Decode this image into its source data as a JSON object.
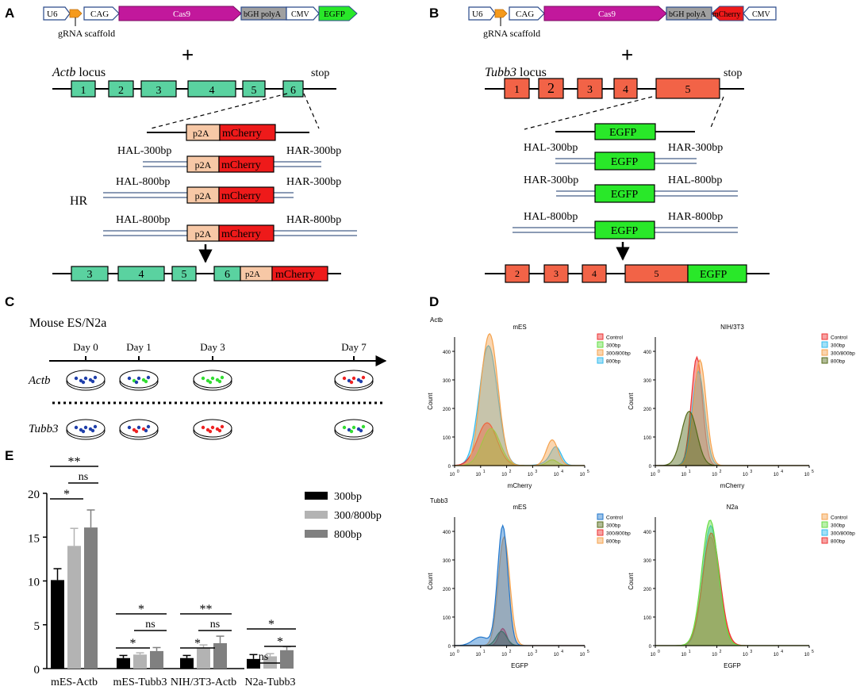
{
  "panels": {
    "A": "A",
    "B": "B",
    "C": "C",
    "D": "D",
    "E": "E"
  },
  "colors": {
    "cas9": "#c2189c",
    "egfp": "#29e829",
    "mcherry": "#ee1a1a",
    "exonA": "#5ad2a0",
    "exonB": "#f26347",
    "p2a": "#f7c8a6",
    "arrow": "#f59a1c",
    "polya": "#a0a0a0",
    "homology": "#8b9bb5"
  },
  "panelA": {
    "plasmid": {
      "u6": "U6",
      "cag": "CAG",
      "cas9": "Cas9",
      "polya": "bGH polyA",
      "cmv": "CMV",
      "egfp": "EGFP",
      "scaffold": "gRNA scaffold"
    },
    "plus": "+",
    "locus_gene": "Actb",
    "locus_word": " locus",
    "stop": "stop",
    "exons": [
      "1",
      "2",
      "3",
      "4",
      "5",
      "6"
    ],
    "donor": {
      "p2a": "p2A",
      "reporter": "mCherry"
    },
    "arms": [
      {
        "left": "HAL-300bp",
        "right": "HAR-300bp"
      },
      {
        "left": "HAL-800bp",
        "right": "HAR-300bp"
      },
      {
        "left": "HAL-800bp",
        "right": "HAR-800bp"
      }
    ],
    "hr": "HR",
    "result_exons": [
      "3",
      "4",
      "5",
      "6"
    ]
  },
  "panelB": {
    "plasmid": {
      "u6": "U6",
      "cag": "CAG",
      "cas9": "Cas9",
      "polya": "bGH polyA",
      "mcherry": "mCherry",
      "cmv": "CMV",
      "scaffold": "gRNA scaffold"
    },
    "plus": "+",
    "locus_gene": "Tubb3",
    "locus_word": " locus",
    "stop": "stop",
    "exons": [
      "1",
      "2",
      "3",
      "4",
      "5"
    ],
    "donor": {
      "reporter": "EGFP"
    },
    "arms": [
      {
        "left": "HAL-300bp",
        "right": "HAR-300bp"
      },
      {
        "left": "HAR-300bp",
        "right": "HAL-800bp"
      },
      {
        "left": "HAL-800bp",
        "right": "HAR-800bp"
      }
    ],
    "result_exons": [
      "2",
      "3",
      "4",
      "5"
    ]
  },
  "panelC": {
    "title": "Mouse ES/N2a",
    "days": [
      "Day 0",
      "Day 1",
      "Day 3",
      "Day 7"
    ],
    "rows": [
      "Actb",
      "Tubb3"
    ]
  },
  "panelD": {
    "row_labels": [
      "Actb",
      "Tubb3"
    ],
    "ylabel": "Count",
    "plots": [
      {
        "title": "mES",
        "xlabel": "mCherry",
        "yticks": [
          "0",
          "100",
          "200",
          "300",
          "400"
        ],
        "legend": [
          {
            "label": "Control",
            "color": "#ee3333"
          },
          {
            "label": "300bp",
            "color": "#66dd44"
          },
          {
            "label": "300/800bp",
            "color": "#f5a24d"
          },
          {
            "label": "800bp",
            "color": "#33bbee"
          }
        ]
      },
      {
        "title": "NIH/3T3",
        "xlabel": "mCherry",
        "yticks": [
          "0",
          "100",
          "200",
          "300",
          "400"
        ],
        "legend": [
          {
            "label": "Control",
            "color": "#ee3333"
          },
          {
            "label": "300bp",
            "color": "#33bbee"
          },
          {
            "label": "300/800bp",
            "color": "#f5a24d"
          },
          {
            "label": "800bp",
            "color": "#556b1a"
          }
        ]
      },
      {
        "title": "mES",
        "xlabel": "EGFP",
        "yticks": [
          "0",
          "100",
          "200",
          "300",
          "400"
        ],
        "legend": [
          {
            "label": "Control",
            "color": "#2277cc"
          },
          {
            "label": "300bp",
            "color": "#556b1a"
          },
          {
            "label": "300/800bp",
            "color": "#ee3333"
          },
          {
            "label": "800bp",
            "color": "#f5a24d"
          }
        ]
      },
      {
        "title": "N2a",
        "xlabel": "EGFP",
        "yticks": [
          "0",
          "100",
          "200",
          "300",
          "400"
        ],
        "legend": [
          {
            "label": "Control",
            "color": "#f5a24d"
          },
          {
            "label": "300bp",
            "color": "#66dd44"
          },
          {
            "label": "300/800bp",
            "color": "#33bbee"
          },
          {
            "label": "800bp",
            "color": "#ee3333"
          }
        ]
      }
    ],
    "xticks": [
      "10",
      "10",
      "10",
      "10",
      "10",
      "10"
    ],
    "xexp": [
      "0",
      "1",
      "2",
      "3",
      "4",
      "5"
    ]
  },
  "chart_data": {
    "type": "bar",
    "title": "",
    "xlabel": "",
    "ylabel": "",
    "ylim": [
      0,
      20
    ],
    "yticks": [
      "0",
      "5",
      "10",
      "15",
      "20"
    ],
    "categories": [
      "mES-Actb",
      "mES-Tubb3",
      "NIH/3T3-Actb",
      "N2a-Tubb3"
    ],
    "series": [
      {
        "name": "300bp",
        "color": "#000000",
        "values": [
          10.1,
          1.2,
          1.2,
          1.1
        ],
        "errors": [
          1.3,
          0.3,
          0.3,
          0.5
        ]
      },
      {
        "name": "300/800bp",
        "color": "#b3b3b3",
        "values": [
          14.0,
          1.6,
          2.3,
          1.4
        ],
        "errors": [
          2.0,
          0.2,
          0.4,
          0.3
        ]
      },
      {
        "name": "800bp",
        "color": "#808080",
        "values": [
          16.1,
          2.0,
          2.9,
          2.1
        ],
        "errors": [
          2.0,
          0.4,
          0.8,
          0.4
        ]
      }
    ],
    "significance": [
      {
        "label": "**",
        "group": 0
      },
      {
        "label": "ns",
        "group": 0
      },
      {
        "label": "*",
        "group": 0
      },
      {
        "label": "*",
        "group": 1
      },
      {
        "label": "ns",
        "group": 1
      },
      {
        "label": "*",
        "group": 1
      },
      {
        "label": "**",
        "group": 2
      },
      {
        "label": "ns",
        "group": 2
      },
      {
        "label": "*",
        "group": 2
      },
      {
        "label": "*",
        "group": 3
      },
      {
        "label": "*",
        "group": 3
      },
      {
        "label": "ns",
        "group": 3
      }
    ]
  }
}
